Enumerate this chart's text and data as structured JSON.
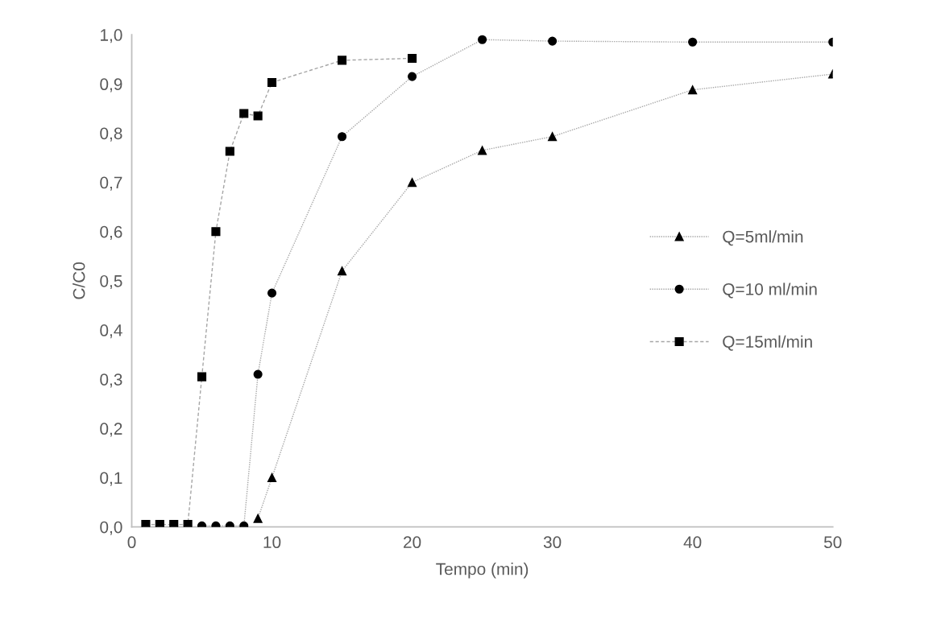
{
  "chart_data": {
    "type": "line",
    "xlabel": "Tempo (min)",
    "ylabel": "C/C0",
    "xlim": [
      0,
      50
    ],
    "xticks": [
      0,
      10,
      20,
      30,
      40,
      50
    ],
    "ylim": [
      0,
      1
    ],
    "yticks": [
      {
        "value": 0,
        "label": "0,0"
      },
      {
        "value": 0.1,
        "label": "0,1"
      },
      {
        "value": 0.2,
        "label": "0,2"
      },
      {
        "value": 0.3,
        "label": "0,3"
      },
      {
        "value": 0.4,
        "label": "0,4"
      },
      {
        "value": 0.5,
        "label": "0,5"
      },
      {
        "value": 0.6,
        "label": "0,6"
      },
      {
        "value": 0.7,
        "label": "0,7"
      },
      {
        "value": 0.8,
        "label": "0,8"
      },
      {
        "value": 0.9,
        "label": "0,9"
      },
      {
        "value": 1,
        "label": "1,0"
      }
    ],
    "grid": false,
    "legend": "right",
    "series": [
      {
        "name": "Q=5ml/min",
        "color": "#000000",
        "marker": "triangle",
        "line_style": "dotted",
        "x": [
          9,
          10,
          15,
          20,
          25,
          30,
          40,
          50
        ],
        "values": [
          0.017,
          0.1,
          0.52,
          0.7,
          0.765,
          0.793,
          0.888,
          0.92
        ]
      },
      {
        "name": "Q=10 ml/min",
        "color": "#000000",
        "marker": "circle",
        "line_style": "dotted",
        "x": [
          5,
          6,
          7,
          8,
          9,
          10,
          15,
          20,
          25,
          30,
          40,
          50
        ],
        "values": [
          0.002,
          0.002,
          0.002,
          0.002,
          0.31,
          0.475,
          0.793,
          0.915,
          0.99,
          0.987,
          0.985,
          0.985
        ]
      },
      {
        "name": "Q=15ml/min",
        "color": "#000000",
        "marker": "square",
        "line_style": "dashed",
        "x": [
          1,
          2,
          3,
          4,
          5,
          6,
          7,
          8,
          9,
          10,
          15,
          20
        ],
        "values": [
          0.005,
          0.005,
          0.005,
          0.005,
          0.305,
          0.6,
          0.763,
          0.84,
          0.835,
          0.903,
          0.948,
          0.952
        ]
      }
    ]
  }
}
